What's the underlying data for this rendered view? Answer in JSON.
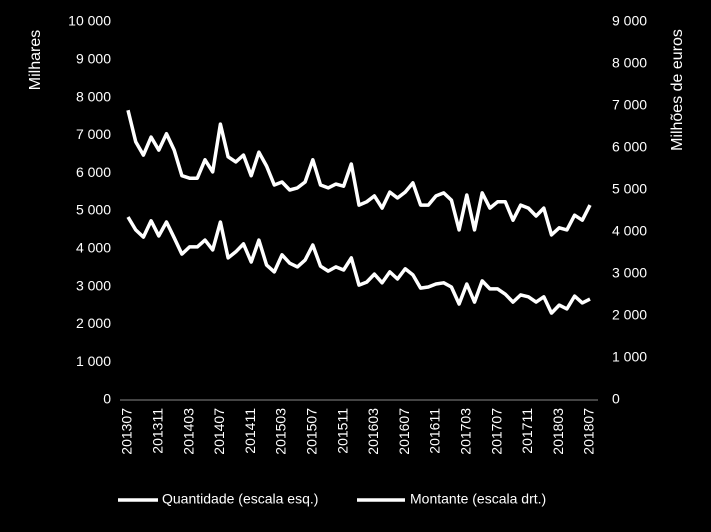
{
  "chart_data": {
    "type": "line",
    "ylabel": "Milhares",
    "y2label": "Milhões de euros",
    "categories": [
      "201307",
      null,
      null,
      null,
      "201311",
      null,
      null,
      null,
      "201403",
      null,
      null,
      null,
      "201407",
      null,
      null,
      null,
      "201411",
      null,
      null,
      null,
      "201503",
      null,
      null,
      null,
      "201507",
      null,
      null,
      null,
      "201511",
      null,
      null,
      null,
      "201603",
      null,
      null,
      null,
      "201607",
      null,
      null,
      null,
      "201611",
      null,
      null,
      null,
      "201703",
      null,
      null,
      null,
      "201707",
      null,
      null,
      null,
      "201711",
      null,
      null,
      null,
      "201803",
      null,
      null,
      null,
      "201807"
    ],
    "series": [
      {
        "name": "Quantidade (escala esq.)",
        "color": "#ffffff",
        "axis": "y",
        "values": [
          4840,
          4500,
          4310,
          4740,
          4340,
          4710,
          4290,
          3860,
          4050,
          4050,
          4230,
          3970,
          4710,
          3760,
          3920,
          4130,
          3650,
          4230,
          3570,
          3390,
          3840,
          3620,
          3520,
          3700,
          4100,
          3540,
          3410,
          3520,
          3440,
          3760,
          3040,
          3120,
          3330,
          3100,
          3390,
          3200,
          3470,
          3310,
          2960,
          2990,
          3070,
          3100,
          2990,
          2540,
          3070,
          2590,
          3150,
          2940,
          2940,
          2800,
          2590,
          2780,
          2730,
          2590,
          2730,
          2300,
          2510,
          2410,
          2750,
          2570,
          2670
        ]
      },
      {
        "name": "Montante (escala drt.)",
        "color": "#ffffff",
        "axis": "y2",
        "values": [
          6900,
          6150,
          5830,
          6260,
          5950,
          6340,
          5950,
          5340,
          5280,
          5280,
          5720,
          5430,
          6570,
          5790,
          5670,
          5830,
          5340,
          5900,
          5570,
          5120,
          5190,
          5000,
          5050,
          5190,
          5720,
          5120,
          5050,
          5140,
          5090,
          5620,
          4640,
          4720,
          4860,
          4570,
          4950,
          4810,
          4950,
          5170,
          4640,
          4640,
          4860,
          4930,
          4760,
          4050,
          4880,
          4050,
          4930,
          4570,
          4720,
          4720,
          4280,
          4640,
          4570,
          4380,
          4570,
          3930,
          4100,
          4050,
          4400,
          4280,
          4640
        ]
      }
    ],
    "ylim": [
      0,
      10000
    ],
    "yticks": [
      0,
      {
        "value": 1000,
        "label": "1 000"
      },
      {
        "value": 2000,
        "label": "2 000"
      },
      {
        "value": 3000,
        "label": "3 000"
      },
      {
        "value": 4000,
        "label": "4 000"
      },
      {
        "value": 5000,
        "label": "5 000"
      },
      {
        "value": 6000,
        "label": "6 000"
      },
      {
        "value": 7000,
        "label": "7 000"
      },
      {
        "value": 8000,
        "label": "8 000"
      },
      {
        "value": 9000,
        "label": "9 000"
      },
      {
        "value": 10000,
        "label": "10 000"
      }
    ],
    "y2lim": [
      0,
      9000
    ],
    "y2ticks": [
      0,
      {
        "value": 1000,
        "label": "1 000"
      },
      {
        "value": 2000,
        "label": "2 000"
      },
      {
        "value": 3000,
        "label": "3 000"
      },
      {
        "value": 4000,
        "label": "4 000"
      },
      {
        "value": 5000,
        "label": "5 000"
      },
      {
        "value": 6000,
        "label": "6 000"
      },
      {
        "value": 7000,
        "label": "7 000"
      },
      {
        "value": 8000,
        "label": "8 000"
      },
      {
        "value": 9000,
        "label": "9 000"
      }
    ],
    "grid": false,
    "legend": "bottom"
  }
}
